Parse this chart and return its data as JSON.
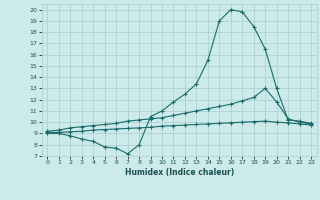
{
  "xlabel": "Humidex (Indice chaleur)",
  "bg_color": "#cceaea",
  "line_color": "#1a6b6b",
  "grid_color": "#aacccc",
  "xlim": [
    -0.5,
    23.5
  ],
  "ylim": [
    7,
    20.5
  ],
  "yticks": [
    7,
    8,
    9,
    10,
    11,
    12,
    13,
    14,
    15,
    16,
    17,
    18,
    19,
    20
  ],
  "xticks": [
    0,
    1,
    2,
    3,
    4,
    5,
    6,
    7,
    8,
    9,
    10,
    11,
    12,
    13,
    14,
    15,
    16,
    17,
    18,
    19,
    20,
    21,
    22,
    23
  ],
  "line1_x": [
    0,
    1,
    2,
    3,
    4,
    5,
    6,
    7,
    8,
    9,
    10,
    11,
    12,
    13,
    14,
    15,
    16,
    17,
    18,
    19,
    20,
    21,
    22,
    23
  ],
  "line1_y": [
    9.0,
    9.0,
    8.8,
    8.5,
    8.3,
    7.8,
    7.7,
    7.2,
    8.0,
    10.5,
    11.0,
    11.8,
    12.5,
    13.4,
    15.5,
    19.0,
    20.0,
    19.8,
    18.5,
    16.5,
    13.0,
    10.2,
    10.1,
    9.9
  ],
  "line2_x": [
    0,
    1,
    2,
    3,
    4,
    5,
    6,
    7,
    8,
    9,
    10,
    11,
    12,
    13,
    14,
    15,
    16,
    17,
    18,
    19,
    20,
    21,
    22,
    23
  ],
  "line2_y": [
    9.2,
    9.3,
    9.5,
    9.6,
    9.7,
    9.8,
    9.9,
    10.1,
    10.2,
    10.3,
    10.4,
    10.6,
    10.8,
    11.0,
    11.2,
    11.4,
    11.6,
    11.9,
    12.2,
    13.0,
    11.8,
    10.3,
    10.0,
    9.85
  ],
  "line3_x": [
    0,
    1,
    2,
    3,
    4,
    5,
    6,
    7,
    8,
    9,
    10,
    11,
    12,
    13,
    14,
    15,
    16,
    17,
    18,
    19,
    20,
    21,
    22,
    23
  ],
  "line3_y": [
    9.1,
    9.1,
    9.15,
    9.2,
    9.3,
    9.35,
    9.4,
    9.45,
    9.5,
    9.55,
    9.65,
    9.7,
    9.75,
    9.8,
    9.85,
    9.9,
    9.95,
    10.0,
    10.05,
    10.1,
    10.0,
    9.95,
    9.85,
    9.75
  ]
}
